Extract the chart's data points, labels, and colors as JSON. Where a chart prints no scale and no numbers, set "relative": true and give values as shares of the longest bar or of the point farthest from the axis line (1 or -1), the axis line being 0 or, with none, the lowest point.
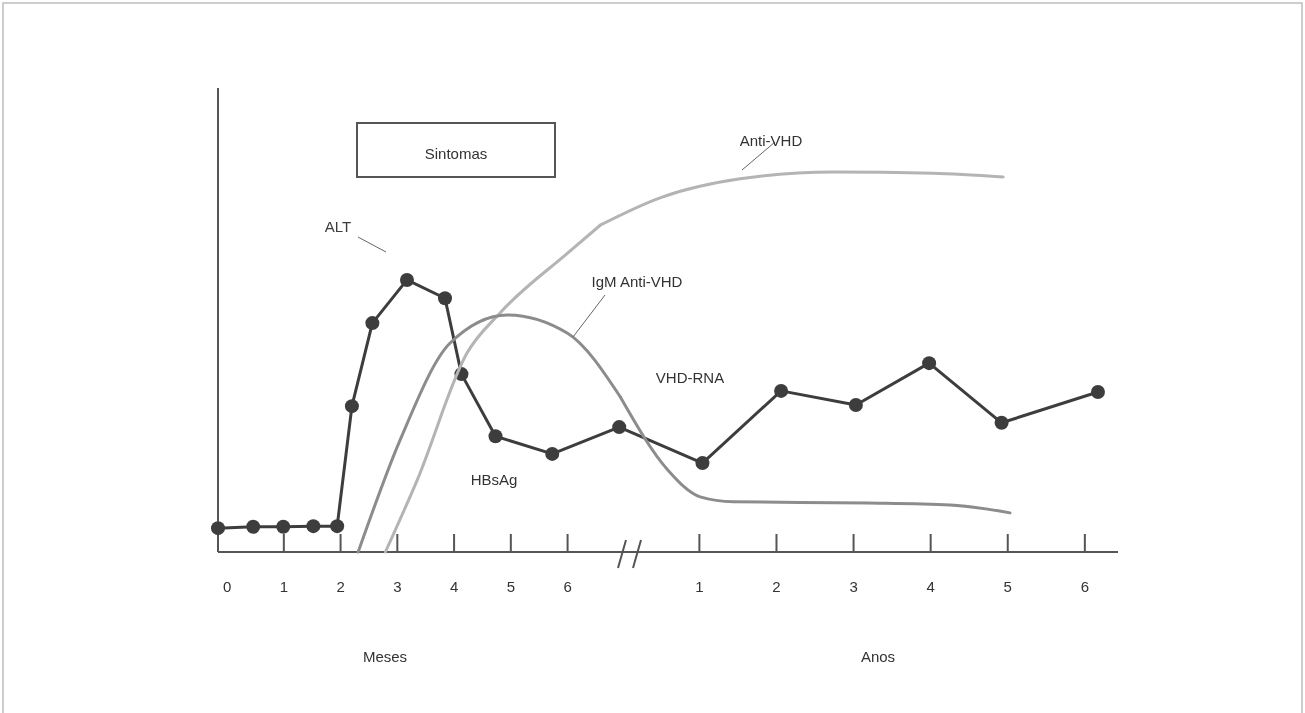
{
  "chart_data": [
    {
      "type": "line",
      "relative": true,
      "xlabel": "Meses",
      "xlim": [
        -0.16,
        7.1
      ],
      "xticks": [
        0,
        1,
        2,
        3,
        4,
        5,
        6
      ],
      "series": [
        {
          "name": "ALT",
          "color": "#3d3d3d",
          "marker": "circle",
          "x": [
            -0.16,
            0.46,
            0.99,
            1.52,
            1.94,
            2.2,
            2.56,
            3.17,
            3.84,
            4.13,
            4.73,
            5.73,
            6.91
          ],
          "values": [
            0.073,
            0.077,
            0.077,
            0.079,
            0.079,
            0.446,
            0.7,
            0.832,
            0.776,
            0.544,
            0.354,
            0.3,
            0.382
          ]
        },
        {
          "color": "#b4b4b4",
          "marker": "none",
          "x": [
            2.79,
            3.35,
            4.23,
            4.81,
            6.0,
            6.58
          ],
          "values": [
            0,
            0.22,
            0.609,
            0.731,
            0.914,
            1
          ]
        },
        {
          "name": "IgM Anti-VHD",
          "color": "#8c8c8c",
          "marker": "none",
          "x": [
            2.31,
            3.05,
            3.93,
            4.94,
            6.0,
            6.93
          ],
          "values": [
            0,
            0.343,
            0.639,
            0.725,
            0.669,
            0.474
          ]
        }
      ],
      "annotations": [
        "Sintomas",
        "HBsAg"
      ]
    },
    {
      "type": "line",
      "relative": true,
      "xlabel": "Anos",
      "xlim": [
        0.1,
        6.43
      ],
      "xticks": [
        1,
        2,
        3,
        4,
        5,
        6
      ],
      "series": [
        {
          "color": "#3d3d3d",
          "marker": "circle",
          "x": [
            1.04,
            2.06,
            3.03,
            3.98,
            4.92,
            6.17
          ],
          "values": [
            0.234,
            0.424,
            0.387,
            0.497,
            0.34,
            0.421
          ]
        },
        {
          "name": "Anti-VHD",
          "color": "#b4b4b4",
          "marker": "none",
          "x": [
            0.49,
            1.53,
            2.74,
            4.03,
            4.94
          ],
          "values": [
            0.932,
            0.982,
            1.0,
            0.997,
            0.987
          ]
        },
        {
          "color": "#8c8c8c",
          "marker": "none",
          "x": [
            0.59,
            1.01,
            1.44,
            3.18,
            4.25,
            5.03
          ],
          "values": [
            0.216,
            0.145,
            0.132,
            0.129,
            0.124,
            0.103
          ]
        }
      ],
      "annotations": [
        "VHD-RNA"
      ]
    }
  ]
}
